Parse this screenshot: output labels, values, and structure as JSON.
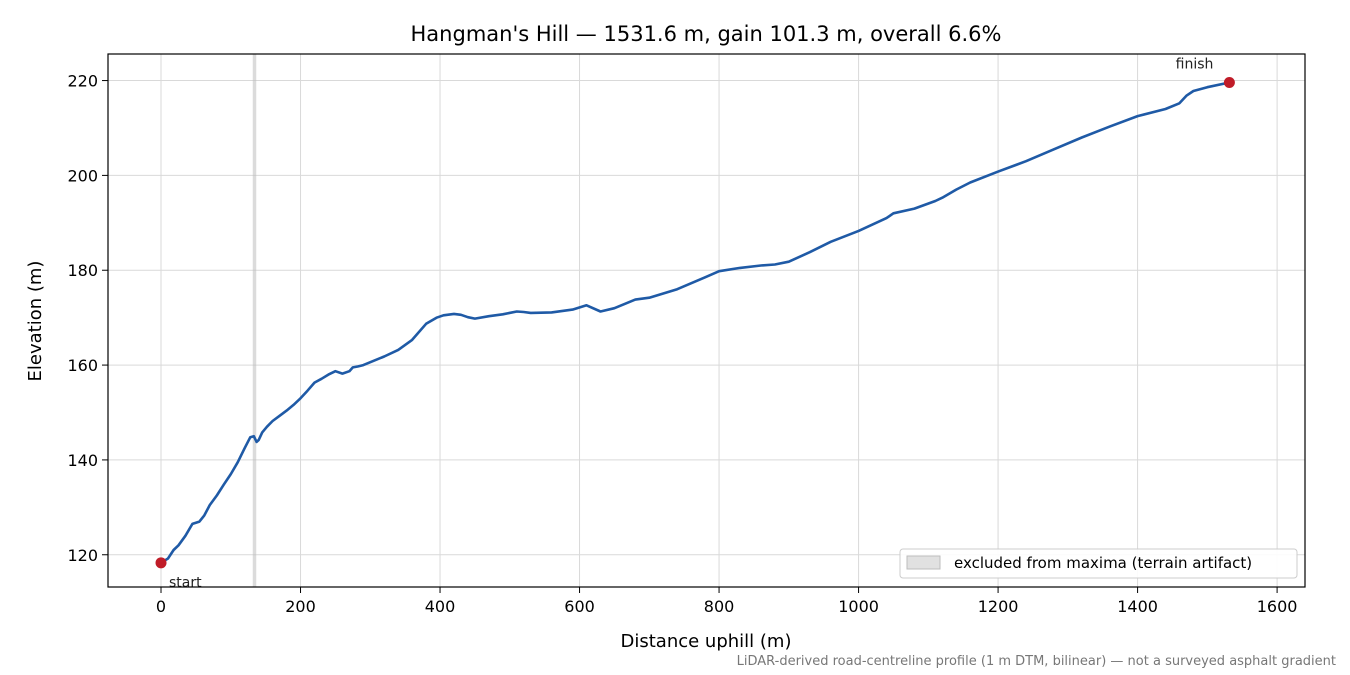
{
  "chart_data": {
    "type": "line",
    "title": "Hangman's Hill — 1531.6 m, gain 101.3 m, overall 6.6%",
    "xlabel": "Distance uphill (m)",
    "ylabel": "Elevation (m)",
    "xlim": [
      -76,
      1640
    ],
    "ylim": [
      113.2,
      225.6
    ],
    "xticks": [
      0,
      200,
      400,
      600,
      800,
      1000,
      1200,
      1400,
      1600
    ],
    "yticks": [
      120,
      140,
      160,
      180,
      200,
      220
    ],
    "grid": true,
    "series": [
      {
        "color": "#1f5aa6",
        "x": [
          0,
          10,
          18,
          25,
          35,
          45,
          55,
          62,
          70,
          80,
          90,
          100,
          110,
          120,
          128,
          133,
          137,
          140,
          145,
          152,
          160,
          170,
          180,
          190,
          200,
          210,
          220,
          230,
          240,
          250,
          260,
          270,
          275,
          282,
          290,
          300,
          320,
          340,
          360,
          380,
          395,
          405,
          420,
          430,
          440,
          450,
          470,
          490,
          510,
          520,
          530,
          560,
          590,
          610,
          630,
          650,
          680,
          700,
          740,
          780,
          800,
          830,
          860,
          880,
          900,
          930,
          960,
          1000,
          1040,
          1050,
          1080,
          1110,
          1120,
          1140,
          1160,
          1200,
          1240,
          1280,
          1320,
          1360,
          1400,
          1440,
          1460,
          1470,
          1480,
          1500,
          1531.6
        ],
        "y": [
          118.3,
          119.2,
          121.0,
          122.0,
          124.0,
          126.5,
          127.0,
          128.3,
          130.5,
          132.5,
          134.8,
          137.0,
          139.5,
          142.5,
          144.8,
          145.0,
          143.8,
          144.2,
          145.8,
          147.0,
          148.2,
          149.3,
          150.4,
          151.6,
          153.0,
          154.6,
          156.3,
          157.1,
          158.0,
          158.7,
          158.2,
          158.7,
          159.5,
          159.7,
          160.0,
          160.6,
          161.8,
          163.2,
          165.3,
          168.7,
          170.0,
          170.5,
          170.8,
          170.6,
          170.1,
          169.8,
          170.3,
          170.7,
          171.3,
          171.2,
          171.0,
          171.1,
          171.7,
          172.6,
          171.3,
          172.0,
          173.8,
          174.2,
          176.0,
          178.5,
          179.8,
          180.5,
          181.0,
          181.2,
          181.8,
          183.8,
          186.0,
          188.3,
          191.0,
          192.0,
          193.0,
          194.6,
          195.3,
          197.0,
          198.5,
          200.8,
          203.0,
          205.5,
          208.0,
          210.3,
          212.5,
          214.0,
          215.2,
          216.8,
          217.8,
          218.6,
          219.6
        ]
      }
    ],
    "points": [
      {
        "x": 0,
        "y": 118.3,
        "color": "#c01c28",
        "label": "start"
      },
      {
        "x": 1531.6,
        "y": 219.6,
        "color": "#c01c28",
        "label": "finish"
      }
    ],
    "excluded_band": {
      "x0": 131.5,
      "x1": 136.5,
      "color": "#bdbdbd"
    },
    "legend": {
      "position": "lower-right",
      "entries": [
        "excluded from maxima (terrain artifact)"
      ]
    },
    "footnote": "LiDAR-derived road-centreline profile (1 m DTM, bilinear) — not a surveyed asphalt gradient"
  }
}
